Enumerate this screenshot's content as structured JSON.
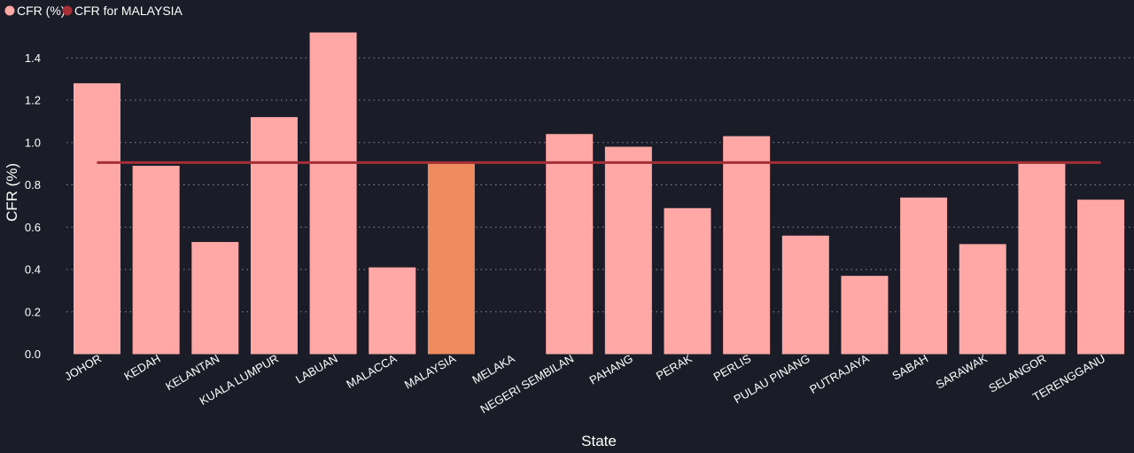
{
  "colors": {
    "background": "#1a1d27",
    "bar": "#ffa8a6",
    "highlight_bar": "#ee8b5f",
    "reference_line": "#a52f36",
    "grid": "#8a8d96",
    "text": "#ffffff"
  },
  "chart_data": {
    "type": "bar",
    "xlabel": "State",
    "ylabel": "CFR (%)",
    "ylim": [
      0,
      1.52
    ],
    "yticks": [
      "0.0",
      "0.2",
      "0.4",
      "0.6",
      "0.8",
      "1.0",
      "1.2",
      "1.4"
    ],
    "grid": "horizontal dotted",
    "legend": {
      "placement": "top-left",
      "items": [
        {
          "label": "CFR (%)",
          "color": "#ffa8a6"
        },
        {
          "label": "CFR for MALAYSIA",
          "color": "#a52f36"
        }
      ]
    },
    "categories": [
      "JOHOR",
      "KEDAH",
      "KELANTAN",
      "KUALA LUMPUR",
      "LABUAN",
      "MALACCA",
      "MALAYSIA",
      "MELAKA",
      "NEGERI SEMBILAN",
      "PAHANG",
      "PERAK",
      "PERLIS",
      "PULAU PINANG",
      "PUTRAJAYA",
      "SABAH",
      "SARAWAK",
      "SELANGOR",
      "TERENGGANU"
    ],
    "series": [
      {
        "name": "CFR (%)",
        "values": [
          1.28,
          0.89,
          0.53,
          1.12,
          1.52,
          0.41,
          0.9,
          0,
          1.04,
          0.98,
          0.69,
          1.03,
          0.56,
          0.37,
          0.74,
          0.52,
          0.9,
          0.73
        ]
      },
      {
        "name": "CFR for MALAYSIA",
        "type": "line",
        "value": 0.905
      }
    ],
    "highlight_category": "MALAYSIA"
  }
}
